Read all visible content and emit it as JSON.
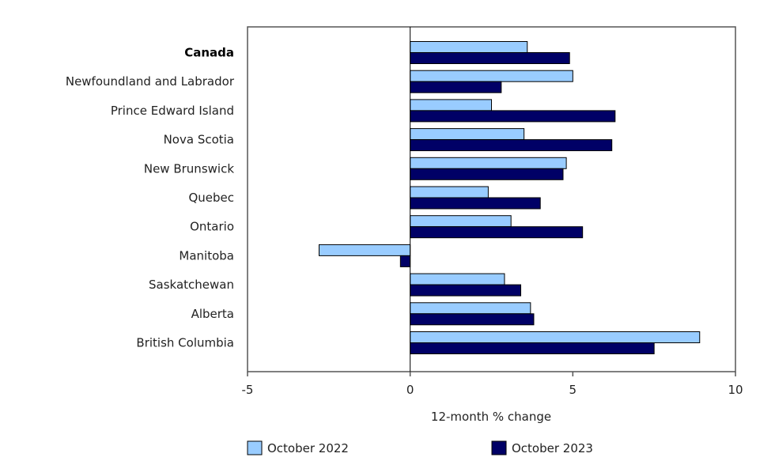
{
  "chart_data": {
    "type": "bar",
    "orientation": "horizontal",
    "categories": [
      "Canada",
      "Newfoundland and Labrador",
      "Prince Edward Island",
      "Nova Scotia",
      "New Brunswick",
      "Quebec",
      "Ontario",
      "Manitoba",
      "Saskatchewan",
      "Alberta",
      "British Columbia"
    ],
    "bold_categories": [
      "Canada"
    ],
    "series": [
      {
        "name": "October 2022",
        "color": "#99ccff",
        "values": [
          3.6,
          5.0,
          2.5,
          3.5,
          4.8,
          2.4,
          3.1,
          -2.8,
          2.9,
          3.7,
          8.9
        ]
      },
      {
        "name": "October 2023",
        "color": "#000066",
        "values": [
          4.9,
          2.8,
          6.3,
          6.2,
          4.7,
          4.0,
          5.3,
          -0.3,
          3.4,
          3.8,
          7.5
        ]
      }
    ],
    "xlabel": "12-month % change",
    "xlim": [
      -5,
      10
    ],
    "xticks": [
      -5,
      0,
      5,
      10
    ],
    "grid": false,
    "legend_position": "bottom"
  }
}
